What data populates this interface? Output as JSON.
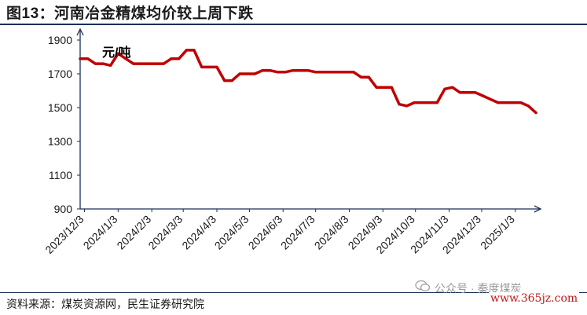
{
  "header": {
    "title": "图13：河南冶金精煤均价较上周下跌"
  },
  "footer": {
    "source": "资料来源：煤炭资源网，民生证券研究院"
  },
  "watermark": {
    "text": "公众号 · 秦度煤炭",
    "url": "www.365jz.com"
  },
  "colors": {
    "line": "#c00000",
    "axis": "#1b2f57",
    "title_rule": "#1b2f57"
  },
  "chart_data": {
    "type": "line",
    "unit_label": "元/吨",
    "ylim": [
      900,
      1900
    ],
    "yticks": [
      900,
      1100,
      1300,
      1500,
      1700,
      1900
    ],
    "x_tick_labels": [
      "2023/12/3",
      "2024/1/3",
      "2024/2/3",
      "2024/3/3",
      "2024/4/3",
      "2024/5/3",
      "2024/6/3",
      "2024/7/3",
      "2024/8/3",
      "2024/9/3",
      "2024/10/3",
      "2024/11/3",
      "2024/12/3",
      "2025/1/3"
    ],
    "grid": false,
    "series": [
      {
        "points": [
          [
            "2023-11-29",
            1790
          ],
          [
            "2023-12-06",
            1790
          ],
          [
            "2023-12-13",
            1760
          ],
          [
            "2023-12-20",
            1760
          ],
          [
            "2023-12-27",
            1750
          ],
          [
            "2024-01-03",
            1820
          ],
          [
            "2024-01-10",
            1790
          ],
          [
            "2024-01-17",
            1760
          ],
          [
            "2024-01-24",
            1760
          ],
          [
            "2024-01-31",
            1760
          ],
          [
            "2024-02-07",
            1760
          ],
          [
            "2024-02-14",
            1760
          ],
          [
            "2024-02-21",
            1790
          ],
          [
            "2024-02-28",
            1790
          ],
          [
            "2024-03-06",
            1840
          ],
          [
            "2024-03-13",
            1840
          ],
          [
            "2024-03-20",
            1740
          ],
          [
            "2024-03-27",
            1740
          ],
          [
            "2024-04-03",
            1740
          ],
          [
            "2024-04-10",
            1660
          ],
          [
            "2024-04-17",
            1660
          ],
          [
            "2024-04-24",
            1700
          ],
          [
            "2024-05-01",
            1700
          ],
          [
            "2024-05-08",
            1700
          ],
          [
            "2024-05-15",
            1720
          ],
          [
            "2024-05-22",
            1720
          ],
          [
            "2024-05-29",
            1710
          ],
          [
            "2024-06-05",
            1710
          ],
          [
            "2024-06-12",
            1720
          ],
          [
            "2024-06-19",
            1720
          ],
          [
            "2024-06-26",
            1720
          ],
          [
            "2024-07-03",
            1710
          ],
          [
            "2024-07-10",
            1710
          ],
          [
            "2024-07-17",
            1710
          ],
          [
            "2024-07-24",
            1710
          ],
          [
            "2024-07-31",
            1710
          ],
          [
            "2024-08-07",
            1710
          ],
          [
            "2024-08-14",
            1680
          ],
          [
            "2024-08-21",
            1680
          ],
          [
            "2024-08-28",
            1620
          ],
          [
            "2024-09-04",
            1620
          ],
          [
            "2024-09-11",
            1620
          ],
          [
            "2024-09-18",
            1520
          ],
          [
            "2024-09-25",
            1510
          ],
          [
            "2024-10-02",
            1530
          ],
          [
            "2024-10-09",
            1530
          ],
          [
            "2024-10-16",
            1530
          ],
          [
            "2024-10-23",
            1530
          ],
          [
            "2024-10-30",
            1610
          ],
          [
            "2024-11-06",
            1620
          ],
          [
            "2024-11-13",
            1590
          ],
          [
            "2024-11-20",
            1590
          ],
          [
            "2024-11-27",
            1590
          ],
          [
            "2024-12-04",
            1570
          ],
          [
            "2024-12-11",
            1550
          ],
          [
            "2024-12-18",
            1530
          ],
          [
            "2024-12-25",
            1530
          ],
          [
            "2025-01-01",
            1530
          ],
          [
            "2025-01-08",
            1530
          ],
          [
            "2025-01-15",
            1510
          ],
          [
            "2025-01-22",
            1470
          ]
        ]
      }
    ]
  }
}
